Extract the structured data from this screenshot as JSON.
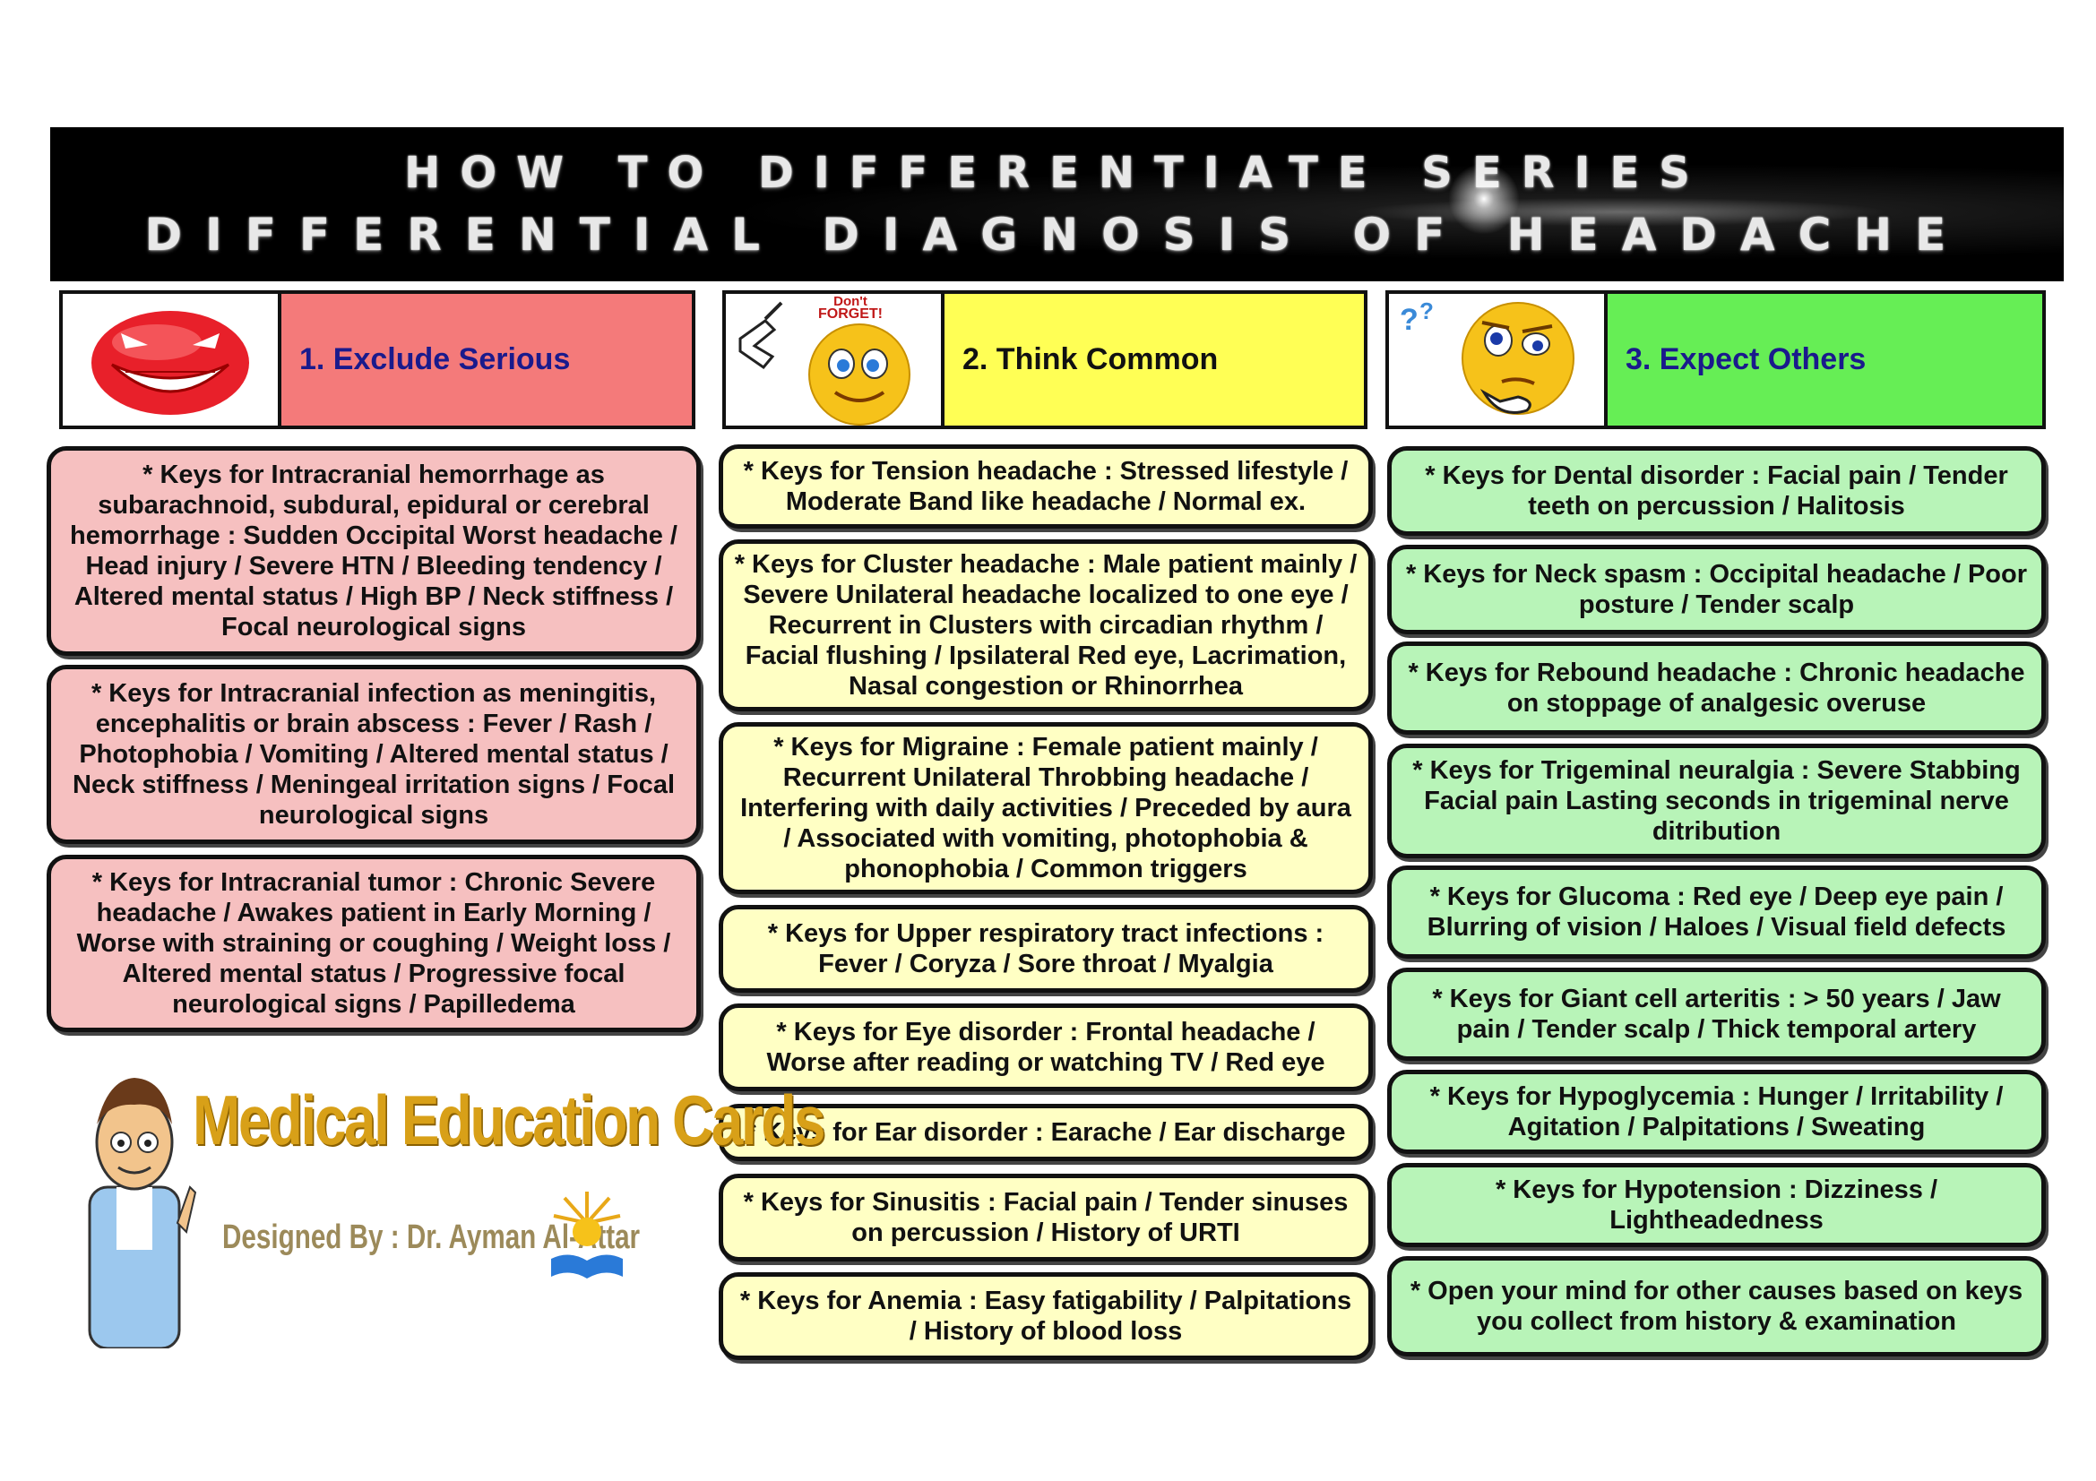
{
  "banner": {
    "line1": "HOW TO DIFFERENTIATE SERIES",
    "line2": "DIFFERENTIAL DIAGNOSIS OF HEADACHE"
  },
  "columns": [
    {
      "title": "1. Exclude Serious",
      "color": "#f47a7a",
      "icon": "angry-devil-smiley-icon",
      "cards": [
        "* Keys for Intracranial hemorrhage as subarachnoid, subdural, epidural or cerebral hemorrhage : Sudden Occipital Worst headache / Head injury / Severe HTN / Bleeding tendency / Altered mental status / High BP / Neck stiffness / Focal neurological signs",
        "* Keys for Intracranial infection as meningitis, encephalitis or brain abscess : Fever / Rash / Photophobia / Vomiting / Altered mental status / Neck stiffness / Meningeal irritation signs / Focal neurological signs",
        "* Keys for Intracranial tumor : Chronic Severe headache / Awakes patient in Early Morning / Worse with straining or coughing / Weight loss / Altered mental status / Progressive focal neurological signs / Papilledema"
      ]
    },
    {
      "title": "2. Think Common",
      "color": "#ffff55",
      "icon": "dont-forget-smiley-icon",
      "icon_text": "Don't FORGET!",
      "cards": [
        "* Keys for Tension headache : Stressed lifestyle / Moderate Band like headache / Normal ex.",
        "* Keys for Cluster headache : Male patient mainly / Severe Unilateral headache localized to one eye / Recurrent in Clusters with circadian rhythm / Facial flushing / Ipsilateral Red eye, Lacrimation, Nasal congestion or Rhinorrhea",
        "* Keys for Migraine : Female patient mainly / Recurrent Unilateral Throbbing headache / Interfering with daily activities / Preceded by aura / Associated with vomiting, photophobia & phonophobia / Common triggers",
        "* Keys for Upper respiratory tract infections : Fever / Coryza / Sore throat / Myalgia",
        "* Keys for Eye disorder : Frontal headache / Worse after reading or watching TV / Red eye",
        "* Keys for Ear disorder : Earache / Ear discharge",
        "* Keys for Sinusitis : Facial pain / Tender sinuses on percussion / History of URTI",
        "* Keys for Anemia : Easy fatigability / Palpitations / History of blood loss"
      ]
    },
    {
      "title": "3. Expect Others",
      "color": "#66ee55",
      "icon": "thinking-smiley-icon",
      "cards": [
        "* Keys for Dental disorder : Facial pain / Tender teeth on percussion / Halitosis",
        "* Keys for Neck spasm : Occipital headache / Poor posture / Tender scalp",
        "* Keys for Rebound headache : Chronic headache on stoppage of analgesic overuse",
        "* Keys for Trigeminal neuralgia : Severe Stabbing Facial pain Lasting seconds in trigeminal nerve ditribution",
        "* Keys for Glucoma : Red eye / Deep eye pain / Blurring of vision / Haloes / Visual field defects",
        "* Keys for Giant cell arteritis : > 50 years / Jaw pain / Tender scalp / Thick temporal artery",
        "* Keys for Hypoglycemia : Hunger / Irritability / Agitation / Palpitations / Sweating",
        "* Keys for Hypotension : Dizziness / Lightheadedness",
        "* Open your mind for other causes based on keys you collect from history & examination"
      ]
    }
  ],
  "logo": {
    "title": "Medical Education Cards",
    "subtitle": "Designed By : Dr. Ayman Al-Attar",
    "icon": "doctor-cartoon-icon"
  }
}
